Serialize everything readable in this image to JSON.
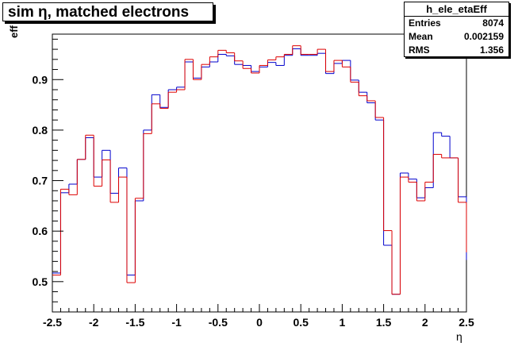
{
  "title": "sim η,  matched electrons",
  "stats": {
    "name": "h_ele_etaEff",
    "rows": [
      {
        "key": "Entries",
        "value": "8074"
      },
      {
        "key": "Mean",
        "value": "0.002159"
      },
      {
        "key": "RMS",
        "value": "1.356"
      }
    ]
  },
  "chart_data": {
    "type": "line",
    "style": "step-histogram",
    "xlabel": "η",
    "ylabel": "eff",
    "xlim": [
      -2.5,
      2.5
    ],
    "ylim": [
      0.44,
      0.99
    ],
    "bin_edges_start": -2.5,
    "bin_width": 0.1,
    "xticks": [
      -2.5,
      -2,
      -1.5,
      -1,
      -0.5,
      0,
      0.5,
      1,
      1.5,
      2,
      2.5
    ],
    "xtick_labels": [
      "-2.5",
      "-2",
      "-1.5",
      "-1",
      "-0.5",
      "0",
      "0.5",
      "1",
      "1.5",
      "2",
      "2.5"
    ],
    "yticks": [
      0.5,
      0.6,
      0.7,
      0.8,
      0.9
    ],
    "ytick_labels": [
      "0.5",
      "0.6",
      "0.7",
      "0.8",
      "0.9"
    ],
    "series": [
      {
        "color": "#0000cc",
        "values": [
          0.517,
          0.676,
          0.693,
          0.742,
          0.785,
          0.707,
          0.76,
          0.675,
          0.725,
          0.513,
          0.66,
          0.8,
          0.87,
          0.845,
          0.88,
          0.885,
          0.935,
          0.903,
          0.925,
          0.935,
          0.95,
          0.947,
          0.93,
          0.928,
          0.916,
          0.925,
          0.934,
          0.928,
          0.948,
          0.961,
          0.948,
          0.948,
          0.952,
          0.912,
          0.932,
          0.938,
          0.899,
          0.875,
          0.854,
          0.82,
          0.572,
          0.475,
          0.715,
          0.703,
          0.666,
          0.686,
          0.795,
          0.788,
          0.745,
          0.668,
          0.543
        ]
      },
      {
        "color": "#dd0000",
        "values": [
          0.513,
          0.683,
          0.672,
          0.742,
          0.79,
          0.689,
          0.741,
          0.657,
          0.707,
          0.498,
          0.665,
          0.793,
          0.852,
          0.843,
          0.875,
          0.88,
          0.94,
          0.9,
          0.93,
          0.945,
          0.958,
          0.953,
          0.937,
          0.922,
          0.913,
          0.928,
          0.939,
          0.945,
          0.95,
          0.967,
          0.95,
          0.95,
          0.96,
          0.916,
          0.938,
          0.925,
          0.895,
          0.868,
          0.858,
          0.825,
          0.601,
          0.475,
          0.707,
          0.697,
          0.66,
          0.697,
          0.752,
          0.745,
          0.745,
          0.657,
          0.558
        ]
      }
    ],
    "grid": false,
    "legend": "none"
  }
}
